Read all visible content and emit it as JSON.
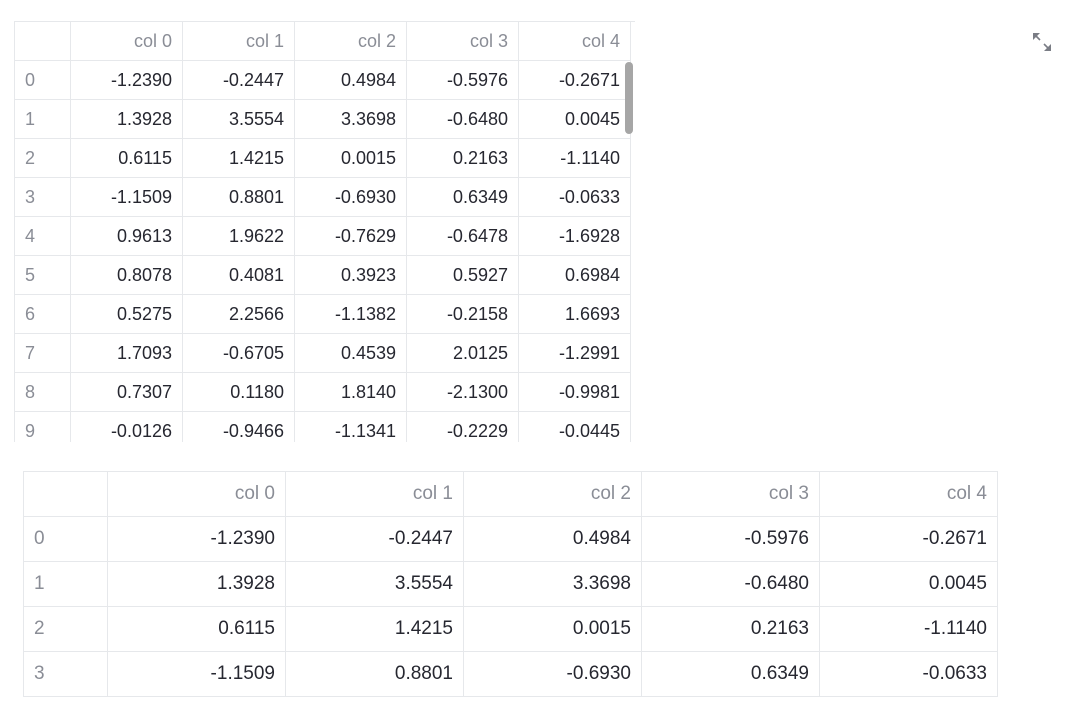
{
  "columns": [
    "col 0",
    "col 1",
    "col 2",
    "col 3",
    "col 4"
  ],
  "interactive_table": {
    "rows": [
      {
        "index": "0",
        "values": [
          "-1.2390",
          "-0.2447",
          "0.4984",
          "-0.5976",
          "-0.2671"
        ]
      },
      {
        "index": "1",
        "values": [
          "1.3928",
          "3.5554",
          "3.3698",
          "-0.6480",
          "0.0045"
        ]
      },
      {
        "index": "2",
        "values": [
          "0.6115",
          "1.4215",
          "0.0015",
          "0.2163",
          "-1.1140"
        ]
      },
      {
        "index": "3",
        "values": [
          "-1.1509",
          "0.8801",
          "-0.6930",
          "0.6349",
          "-0.0633"
        ]
      },
      {
        "index": "4",
        "values": [
          "0.9613",
          "1.9622",
          "-0.7629",
          "-0.6478",
          "-1.6928"
        ]
      },
      {
        "index": "5",
        "values": [
          "0.8078",
          "0.4081",
          "0.3923",
          "0.5927",
          "0.6984"
        ]
      },
      {
        "index": "6",
        "values": [
          "0.5275",
          "2.2566",
          "-1.1382",
          "-0.2158",
          "1.6693"
        ]
      },
      {
        "index": "7",
        "values": [
          "1.7093",
          "-0.6705",
          "0.4539",
          "2.0125",
          "-1.2991"
        ]
      },
      {
        "index": "8",
        "values": [
          "0.7307",
          "0.1180",
          "1.8140",
          "-2.1300",
          "-0.9981"
        ]
      },
      {
        "index": "9",
        "values": [
          "-0.0126",
          "-0.9466",
          "-1.1341",
          "-0.2229",
          "-0.0445"
        ]
      }
    ]
  },
  "static_table": {
    "rows": [
      {
        "index": "0",
        "values": [
          "-1.2390",
          "-0.2447",
          "0.4984",
          "-0.5976",
          "-0.2671"
        ]
      },
      {
        "index": "1",
        "values": [
          "1.3928",
          "3.5554",
          "3.3698",
          "-0.6480",
          "0.0045"
        ]
      },
      {
        "index": "2",
        "values": [
          "0.6115",
          "1.4215",
          "0.0015",
          "0.2163",
          "-1.1140"
        ]
      },
      {
        "index": "3",
        "values": [
          "-1.1509",
          "0.8801",
          "-0.6930",
          "0.6349",
          "-0.0633"
        ]
      }
    ]
  },
  "icons": {
    "expand": "expand-fullscreen-icon"
  },
  "colors": {
    "grid": "#e6e8eb",
    "muted_text": "#8a8d96",
    "text": "#262730",
    "scrollbar": "#a6a6a6"
  }
}
